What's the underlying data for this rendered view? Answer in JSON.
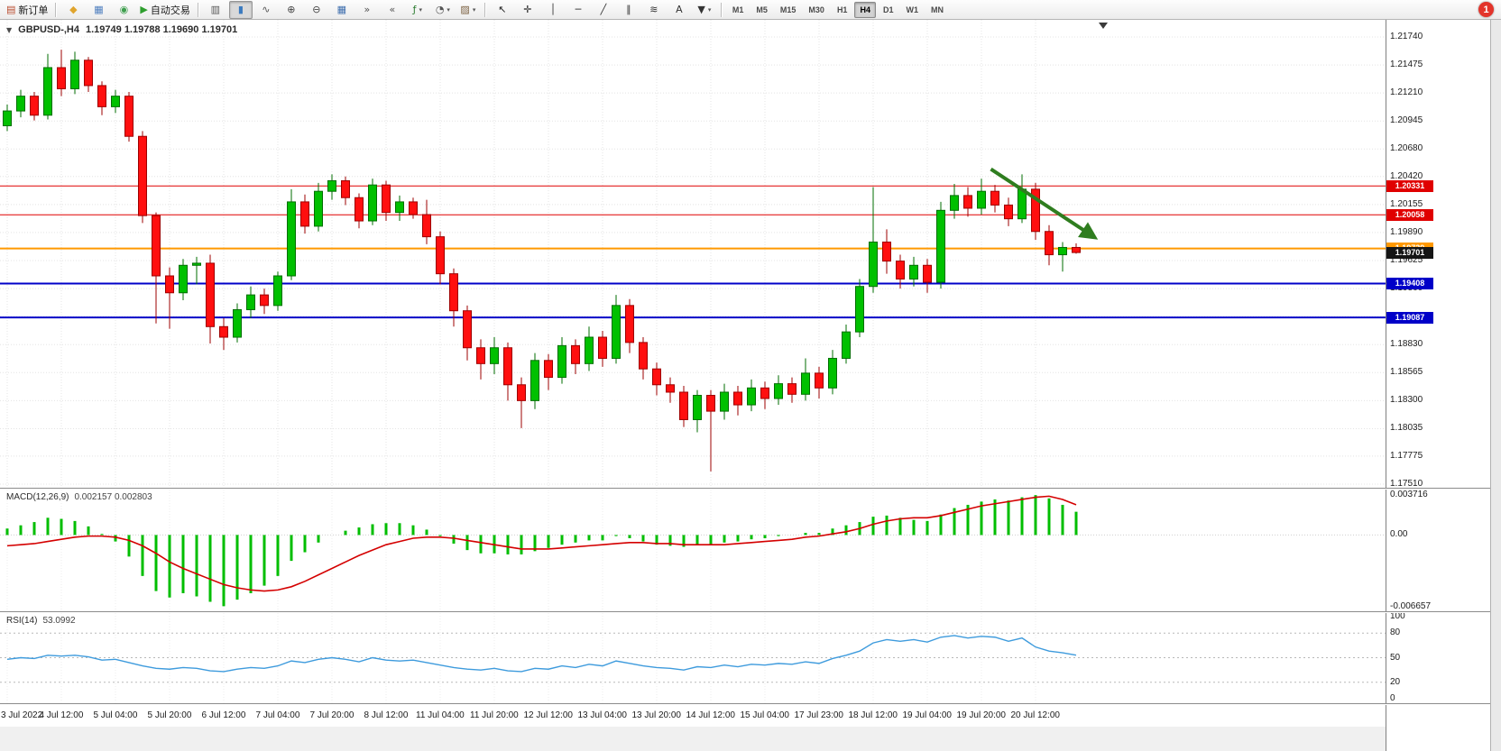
{
  "badge": {
    "count": "1"
  },
  "toolbar": {
    "timeframes": [
      "M1",
      "M5",
      "M15",
      "M30",
      "H1",
      "H4",
      "D1",
      "W1",
      "MN"
    ],
    "active_timeframe": "H4",
    "groups": [
      {
        "items": [
          {
            "name": "new-order-button",
            "glyph": "▤",
            "glyph_color": "#b94a2c",
            "label": "新订单"
          }
        ]
      },
      {
        "sep": true
      },
      {
        "items": [
          {
            "name": "metaeditor-icon",
            "glyph": "◆",
            "glyph_color": "#e0a52e"
          },
          {
            "name": "market-watch-icon",
            "glyph": "▦",
            "glyph_color": "#4f7fbf"
          },
          {
            "name": "data-window-icon",
            "glyph": "◉",
            "glyph_color": "#3f9f4f"
          },
          {
            "name": "autotrading-button",
            "glyph": "▶",
            "glyph_color": "#2e9e2e",
            "label": "自动交易"
          }
        ]
      },
      {
        "sep": true
      },
      {
        "items": [
          {
            "name": "bar-chart-icon",
            "glyph": "▥",
            "glyph_color": "#555555"
          },
          {
            "name": "candlestick-chart-icon",
            "glyph": "▮",
            "glyph_color": "#3a7abf",
            "active": true
          },
          {
            "name": "line-chart-icon",
            "glyph": "∿",
            "glyph_color": "#555555"
          }
        ]
      },
      {
        "items": [
          {
            "name": "zoom-in-icon",
            "glyph": "⊕",
            "glyph_color": "#444444"
          },
          {
            "name": "zoom-out-icon",
            "glyph": "⊖",
            "glyph_color": "#444444"
          }
        ]
      },
      {
        "items": [
          {
            "name": "tile-windows-icon",
            "glyph": "▦",
            "glyph_color": "#3f6fae"
          },
          {
            "name": "auto-scroll-icon",
            "glyph": "»",
            "glyph_color": "#555555"
          },
          {
            "name": "chart-shift-icon",
            "glyph": "«",
            "glyph_color": "#555555"
          }
        ]
      },
      {
        "items": [
          {
            "name": "indicators-icon",
            "glyph": "ƒ",
            "glyph_color": "#2e7d32",
            "caret": true
          },
          {
            "name": "periods-icon",
            "glyph": "◔",
            "glyph_color": "#555555",
            "caret": true
          },
          {
            "name": "templates-icon",
            "glyph": "▨",
            "glyph_color": "#7a5f3f",
            "caret": true
          }
        ]
      },
      {
        "sep": true
      },
      {
        "items": [
          {
            "name": "cursor-icon",
            "glyph": "↖",
            "glyph_color": "#222222"
          },
          {
            "name": "crosshair-icon",
            "glyph": "✛",
            "glyph_color": "#222222"
          }
        ]
      },
      {
        "items": [
          {
            "name": "vertical-line-icon",
            "glyph": "│",
            "glyph_color": "#333333"
          },
          {
            "name": "horizontal-line-icon",
            "glyph": "─",
            "glyph_color": "#333333"
          },
          {
            "name": "trendline-icon",
            "glyph": "╱",
            "glyph_color": "#333333"
          },
          {
            "name": "channel-icon",
            "glyph": "∥",
            "glyph_color": "#333333"
          },
          {
            "name": "fibonac­ci-icon",
            "glyph": "≋",
            "glyph_color": "#333333"
          },
          {
            "name": "text-icon",
            "glyph": "A",
            "glyph_color": "#333333"
          },
          {
            "name": "arrows-icon",
            "glyph": "▼",
            "glyph_color": "#333333",
            "caret": true
          }
        ]
      },
      {
        "sep": true
      }
    ]
  },
  "chart_data": {
    "type": "candlestick",
    "symbol": "GBPUSD-",
    "timeframe": "H4",
    "title_symbol": "GBPUSD-,H4",
    "title_ohlc": "1.19749 1.19788 1.19690 1.19701",
    "quote": {
      "open": "1.19749",
      "high": "1.19788",
      "low": "1.19690",
      "close": "1.19701"
    },
    "price_axis_ticks": [
      "1.21740",
      "1.21475",
      "1.21210",
      "1.20945",
      "1.20680",
      "1.20420",
      "1.20155",
      "1.19890",
      "1.19625",
      "1.19360",
      "1.19095",
      "1.18830",
      "1.18565",
      "1.18300",
      "1.18035",
      "1.17775",
      "1.17510"
    ],
    "hlines": [
      {
        "price": 1.20331,
        "label": "1.20331",
        "color": "#e00000",
        "width": 1
      },
      {
        "price": 1.20058,
        "label": "1.20058",
        "color": "#e00000",
        "width": 1
      },
      {
        "price": 1.19739,
        "label": "1.19739",
        "color": "#ff9900",
        "width": 2
      },
      {
        "price": 1.19408,
        "label": "1.19408",
        "color": "#0000c8",
        "width": 2
      },
      {
        "price": 1.19087,
        "label": "1.19087",
        "color": "#0000c8",
        "width": 2
      }
    ],
    "current_price_tag": {
      "price": 1.19701,
      "label": "1.19701",
      "color": "#151515"
    },
    "colors": {
      "bull": "#00c000",
      "bull_border": "#006e00",
      "bear": "#ff0f0f",
      "bear_border": "#9e0000",
      "grid": "#e4e4e4"
    },
    "label_every": 4,
    "time_labels": [
      "3 Jul 2022",
      "4 Jul 12:00",
      "5 Jul 04:00",
      "5 Jul 20:00",
      "6 Jul 12:00",
      "7 Jul 04:00",
      "7 Jul 20:00",
      "8 Jul 12:00",
      "11 Jul 04:00",
      "11 Jul 20:00",
      "12 Jul 12:00",
      "13 Jul 04:00",
      "13 Jul 20:00",
      "14 Jul 12:00",
      "15 Jul 04:00",
      "17 Jul 23:00",
      "18 Jul 12:00",
      "19 Jul 04:00",
      "19 Jul 20:00",
      "20 Jul 12:00"
    ],
    "shift_marker_candle": 81.0,
    "arrow": {
      "name": "trend-arrow",
      "color": "#2f7d1f",
      "width": 4,
      "from": {
        "candle": 72.7,
        "price": 1.2049
      },
      "to": {
        "candle": 80.3,
        "price": 1.1985
      }
    },
    "candles": [
      [
        1.209,
        1.211,
        1.2085,
        1.2104
      ],
      [
        1.2104,
        1.2124,
        1.2098,
        1.2118
      ],
      [
        1.2118,
        1.2122,
        1.2095,
        1.21
      ],
      [
        1.21,
        1.2158,
        1.2096,
        1.2145
      ],
      [
        1.2145,
        1.2162,
        1.2118,
        1.2125
      ],
      [
        1.2125,
        1.216,
        1.212,
        1.2152
      ],
      [
        1.2152,
        1.2155,
        1.2122,
        1.2128
      ],
      [
        1.2128,
        1.2132,
        1.21,
        1.2108
      ],
      [
        1.2108,
        1.2124,
        1.2102,
        1.2118
      ],
      [
        1.2118,
        1.2122,
        1.2075,
        1.208
      ],
      [
        1.208,
        1.2085,
        1.1998,
        1.2005
      ],
      [
        1.2005,
        1.2008,
        1.1903,
        1.1948
      ],
      [
        1.1948,
        1.1956,
        1.1898,
        1.1932
      ],
      [
        1.1932,
        1.1964,
        1.1925,
        1.1958
      ],
      [
        1.1958,
        1.1966,
        1.194,
        1.196
      ],
      [
        1.196,
        1.1968,
        1.1884,
        1.19
      ],
      [
        1.19,
        1.1908,
        1.1878,
        1.189
      ],
      [
        1.189,
        1.1922,
        1.1885,
        1.1916
      ],
      [
        1.1916,
        1.1938,
        1.1908,
        1.193
      ],
      [
        1.193,
        1.1936,
        1.1912,
        1.192
      ],
      [
        1.192,
        1.1952,
        1.1915,
        1.1948
      ],
      [
        1.1948,
        1.203,
        1.1944,
        1.2018
      ],
      [
        1.2018,
        1.2025,
        1.1988,
        1.1995
      ],
      [
        1.1995,
        1.2036,
        1.199,
        1.2028
      ],
      [
        1.2028,
        1.2044,
        1.202,
        1.2038
      ],
      [
        1.2038,
        1.2042,
        1.2015,
        1.2022
      ],
      [
        1.2022,
        1.2026,
        1.1993,
        1.2
      ],
      [
        1.2,
        1.204,
        1.1996,
        1.2034
      ],
      [
        1.2034,
        1.2038,
        1.2,
        1.2008
      ],
      [
        1.2008,
        1.2024,
        1.2,
        1.2018
      ],
      [
        1.2018,
        1.2022,
        1.2002,
        1.2006
      ],
      [
        1.2006,
        1.202,
        1.1978,
        1.1985
      ],
      [
        1.1985,
        1.199,
        1.194,
        1.195
      ],
      [
        1.195,
        1.1955,
        1.19,
        1.1915
      ],
      [
        1.1915,
        1.192,
        1.1868,
        1.188
      ],
      [
        1.188,
        1.1888,
        1.185,
        1.1865
      ],
      [
        1.1865,
        1.189,
        1.1855,
        1.188
      ],
      [
        1.188,
        1.1885,
        1.183,
        1.1845
      ],
      [
        1.1845,
        1.1852,
        1.1804,
        1.183
      ],
      [
        1.183,
        1.1875,
        1.1822,
        1.1868
      ],
      [
        1.1868,
        1.1874,
        1.184,
        1.1852
      ],
      [
        1.1852,
        1.189,
        1.1846,
        1.1882
      ],
      [
        1.1882,
        1.1888,
        1.1855,
        1.1865
      ],
      [
        1.1865,
        1.19,
        1.1858,
        1.189
      ],
      [
        1.189,
        1.1896,
        1.1862,
        1.187
      ],
      [
        1.187,
        1.193,
        1.1865,
        1.192
      ],
      [
        1.192,
        1.1926,
        1.1875,
        1.1885
      ],
      [
        1.1885,
        1.189,
        1.185,
        1.186
      ],
      [
        1.186,
        1.1866,
        1.1835,
        1.1845
      ],
      [
        1.1845,
        1.1852,
        1.1828,
        1.1838
      ],
      [
        1.1838,
        1.1844,
        1.1805,
        1.1812
      ],
      [
        1.1812,
        1.184,
        1.18,
        1.1835
      ],
      [
        1.1835,
        1.184,
        1.1763,
        1.182
      ],
      [
        1.182,
        1.1846,
        1.1812,
        1.1838
      ],
      [
        1.1838,
        1.1844,
        1.1816,
        1.1826
      ],
      [
        1.1826,
        1.185,
        1.182,
        1.1842
      ],
      [
        1.1842,
        1.1848,
        1.1822,
        1.1832
      ],
      [
        1.1832,
        1.1854,
        1.1826,
        1.1846
      ],
      [
        1.1846,
        1.1852,
        1.1828,
        1.1836
      ],
      [
        1.1836,
        1.187,
        1.183,
        1.1856
      ],
      [
        1.1856,
        1.1862,
        1.1832,
        1.1842
      ],
      [
        1.1842,
        1.1878,
        1.1836,
        1.187
      ],
      [
        1.187,
        1.1902,
        1.1865,
        1.1895
      ],
      [
        1.1895,
        1.1945,
        1.189,
        1.1938
      ],
      [
        1.1938,
        1.2032,
        1.1932,
        1.198
      ],
      [
        1.198,
        1.1992,
        1.195,
        1.1962
      ],
      [
        1.1962,
        1.1968,
        1.1936,
        1.1945
      ],
      [
        1.1945,
        1.1966,
        1.1938,
        1.1958
      ],
      [
        1.1958,
        1.1964,
        1.1932,
        1.1942
      ],
      [
        1.1942,
        1.2018,
        1.1936,
        1.201
      ],
      [
        1.201,
        1.2035,
        1.2002,
        1.2024
      ],
      [
        1.2024,
        1.2032,
        1.2004,
        1.2012
      ],
      [
        1.2012,
        1.204,
        1.2006,
        1.2028
      ],
      [
        1.2028,
        1.2034,
        1.2008,
        1.2015
      ],
      [
        1.2015,
        1.2022,
        1.1995,
        1.2002
      ],
      [
        1.2002,
        1.2044,
        1.1998,
        1.203
      ],
      [
        1.203,
        1.2036,
        1.1982,
        1.199
      ],
      [
        1.199,
        1.1996,
        1.1958,
        1.1968
      ],
      [
        1.1968,
        1.198,
        1.1952,
        1.19749
      ],
      [
        1.19749,
        1.19788,
        1.1969,
        1.19701
      ]
    ],
    "macd": {
      "label": "MACD(12,26,9)",
      "values_text": "0.002157 0.002803",
      "scale_max": 0.003716,
      "scale_min": -0.006657,
      "axis_ticks": [
        "0.003716",
        "0.00",
        "-0.006657"
      ],
      "histogram_color": "#00be00",
      "signal_color": "#d40000",
      "histogram": [
        0.0006,
        0.0009,
        0.0012,
        0.0016,
        0.0015,
        0.0013,
        0.0008,
        0.0001,
        -0.0006,
        -0.002,
        -0.0038,
        -0.0052,
        -0.0058,
        -0.0054,
        -0.0057,
        -0.0062,
        -0.0066,
        -0.006,
        -0.0054,
        -0.0047,
        -0.0038,
        -0.0024,
        -0.0016,
        -0.0007,
        0.0,
        0.0004,
        0.0007,
        0.001,
        0.0011,
        0.0011,
        0.0009,
        0.0005,
        -0.0001,
        -0.0008,
        -0.0014,
        -0.0017,
        -0.0017,
        -0.0018,
        -0.0018,
        -0.0015,
        -0.0012,
        -0.0009,
        -0.0007,
        -0.0005,
        -0.0005,
        -0.0001,
        -0.0003,
        -0.0006,
        -0.0009,
        -0.001,
        -0.0011,
        -0.0009,
        -0.0009,
        -0.0007,
        -0.0006,
        -0.0004,
        -0.0003,
        -0.0001,
        0.0,
        0.0002,
        0.0002,
        0.0006,
        0.0009,
        0.0012,
        0.0017,
        0.0018,
        0.0016,
        0.0014,
        0.0013,
        0.0019,
        0.0025,
        0.0028,
        0.0031,
        0.0033,
        0.0032,
        0.0035,
        0.0037,
        0.0034,
        0.0028,
        0.002157
      ],
      "signal": [
        -0.001,
        -0.0009,
        -0.0008,
        -0.0006,
        -0.0004,
        -0.0002,
        -0.0001,
        -0.0001,
        -0.0002,
        -0.0005,
        -0.001,
        -0.0017,
        -0.0025,
        -0.0031,
        -0.0036,
        -0.0041,
        -0.0046,
        -0.0049,
        -0.0051,
        -0.0052,
        -0.0051,
        -0.0048,
        -0.0043,
        -0.0037,
        -0.0031,
        -0.0025,
        -0.0019,
        -0.0014,
        -0.0009,
        -0.0006,
        -0.0003,
        -0.0002,
        -0.0002,
        -0.0003,
        -0.0005,
        -0.0007,
        -0.0009,
        -0.0011,
        -0.0013,
        -0.0013,
        -0.0013,
        -0.0012,
        -0.0011,
        -0.001,
        -0.0009,
        -0.0008,
        -0.0007,
        -0.0007,
        -0.0008,
        -0.0008,
        -0.0009,
        -0.0009,
        -0.0009,
        -0.0009,
        -0.0008,
        -0.0007,
        -0.0006,
        -0.0005,
        -0.0004,
        -0.0002,
        -0.0001,
        0.0001,
        0.0003,
        0.0006,
        0.001,
        0.0013,
        0.0015,
        0.0016,
        0.0016,
        0.0018,
        0.0021,
        0.0024,
        0.0027,
        0.0029,
        0.0031,
        0.0033,
        0.0035,
        0.0036,
        0.0033,
        0.002803
      ]
    },
    "rsi": {
      "label": "RSI(14)",
      "value_text": "53.0992",
      "line_color": "#3e9bdd",
      "levels": [
        80,
        50,
        20
      ],
      "axis_ticks": [
        "100",
        "80",
        "50",
        "20",
        "0"
      ],
      "series": [
        48,
        50,
        49,
        53,
        52,
        53,
        51,
        47,
        48,
        44,
        40,
        37,
        36,
        38,
        37,
        34,
        33,
        36,
        38,
        37,
        40,
        46,
        44,
        48,
        50,
        48,
        45,
        50,
        47,
        46,
        47,
        44,
        41,
        38,
        36,
        35,
        37,
        34,
        33,
        37,
        36,
        40,
        38,
        42,
        40,
        46,
        43,
        40,
        38,
        37,
        35,
        39,
        38,
        41,
        39,
        42,
        41,
        43,
        42,
        45,
        43,
        49,
        53,
        58,
        68,
        72,
        70,
        72,
        69,
        75,
        77,
        74,
        76,
        75,
        70,
        74,
        63,
        58,
        56,
        53.0992
      ]
    }
  }
}
